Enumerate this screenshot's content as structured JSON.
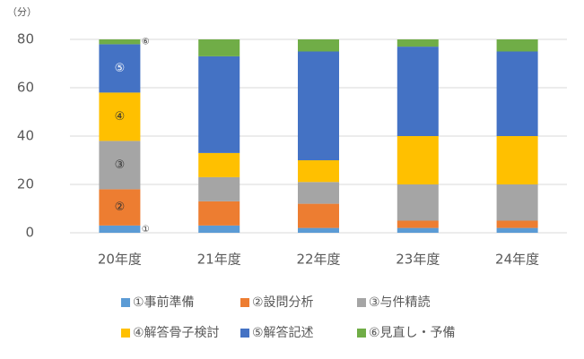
{
  "chart_data": {
    "type": "stacked_bar",
    "ylabel": "（分）",
    "categories": [
      "20年度",
      "21年度",
      "22年度",
      "23年度",
      "24年度"
    ],
    "series": [
      {
        "name": "①事前準備",
        "label": "①",
        "color": "#5b9bd5",
        "values": [
          3,
          3,
          2,
          2,
          2
        ]
      },
      {
        "name": "②設問分析",
        "label": "②",
        "color": "#ed7d31",
        "values": [
          15,
          10,
          10,
          3,
          3
        ]
      },
      {
        "name": "③与件精読",
        "label": "③",
        "color": "#a5a5a5",
        "values": [
          20,
          10,
          9,
          15,
          15
        ]
      },
      {
        "name": "④解答骨子検討",
        "label": "④",
        "color": "#ffc000",
        "values": [
          20,
          10,
          9,
          20,
          20
        ]
      },
      {
        "name": "⑤解答記述",
        "label": "⑤",
        "color": "#4472c4",
        "values": [
          20,
          40,
          45,
          37,
          35
        ]
      },
      {
        "name": "⑥見直し・予備",
        "label": "⑥",
        "color": "#70ad47",
        "values": [
          2,
          7,
          5,
          3,
          5
        ]
      }
    ],
    "ylim": [
      0,
      80
    ],
    "yticks": [
      0,
      20,
      40,
      60,
      80
    ],
    "grid": true,
    "legend": "bottom"
  }
}
